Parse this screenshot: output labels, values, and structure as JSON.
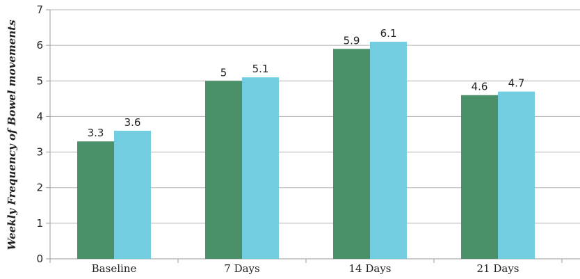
{
  "chart_data": {
    "type": "bar",
    "title": "",
    "xlabel": "",
    "ylabel": "Weekly Frequency of Bowel movements",
    "categories": [
      "Baseline",
      "7 Days",
      "14 Days",
      "21 Days"
    ],
    "series": [
      {
        "values": [
          3.3,
          5,
          5.9,
          4.6
        ],
        "color": "#4a9068"
      },
      {
        "values": [
          3.6,
          5.1,
          6.1,
          4.7
        ],
        "color": "#72cde0"
      }
    ],
    "ylim": [
      0,
      7
    ],
    "yticks": [
      0,
      1,
      2,
      3,
      4,
      5,
      6,
      7
    ],
    "grid": true,
    "legend": "none",
    "colors": {
      "grid": "#b3b3b3",
      "axis": "#999999",
      "text": "#222222"
    }
  }
}
